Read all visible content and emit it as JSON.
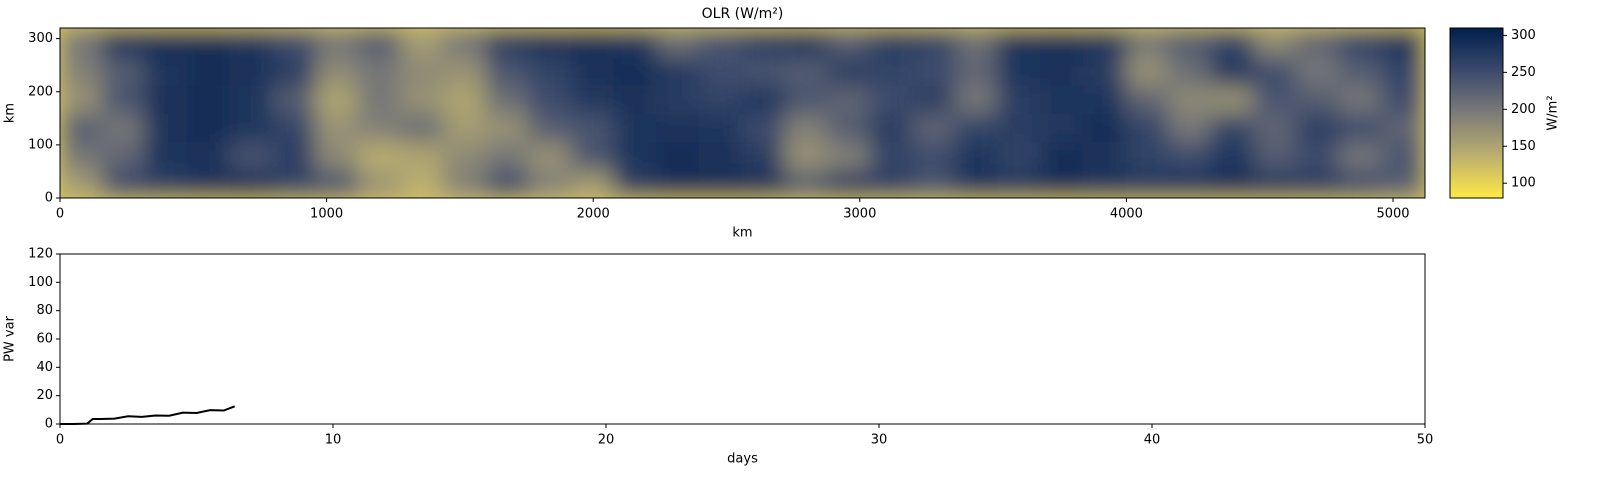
{
  "chart_data": [
    {
      "type": "heatmap",
      "title": "OLR (W/m²)",
      "xlabel": "km",
      "ylabel": "km",
      "xlim": [
        0,
        5120
      ],
      "xticks": [
        0,
        1000,
        2000,
        3000,
        4000,
        5000
      ],
      "ylim": [
        0,
        320
      ],
      "yticks": [
        0,
        100,
        200,
        300
      ],
      "colormap": "cividis_r",
      "colorbar": {
        "label": "W/m²",
        "lim": [
          80,
          310
        ],
        "ticks": [
          100,
          150,
          200,
          250,
          300
        ]
      },
      "values": [
        [
          160,
          250,
          270,
          285,
          290,
          260,
          240,
          170,
          140,
          190,
          250,
          190,
          160,
          270,
          290,
          290,
          285,
          230,
          270,
          265,
          240,
          280,
          275,
          290,
          280,
          275,
          280,
          285,
          275,
          270,
          250,
          230
        ],
        [
          200,
          220,
          280,
          285,
          240,
          270,
          180,
          140,
          150,
          180,
          200,
          170,
          240,
          280,
          290,
          285,
          270,
          170,
          190,
          260,
          250,
          280,
          260,
          290,
          285,
          260,
          250,
          280,
          230,
          250,
          200,
          240
        ],
        [
          230,
          200,
          285,
          290,
          280,
          260,
          170,
          190,
          210,
          160,
          170,
          230,
          240,
          280,
          285,
          280,
          250,
          190,
          230,
          270,
          220,
          260,
          270,
          275,
          290,
          260,
          200,
          260,
          220,
          270,
          250,
          220
        ],
        [
          170,
          240,
          285,
          290,
          280,
          230,
          150,
          200,
          170,
          150,
          210,
          250,
          275,
          285,
          270,
          260,
          280,
          240,
          220,
          250,
          270,
          200,
          270,
          280,
          280,
          220,
          180,
          170,
          240,
          230,
          200,
          250
        ],
        [
          190,
          230,
          280,
          290,
          285,
          270,
          180,
          200,
          180,
          170,
          240,
          260,
          285,
          290,
          275,
          250,
          240,
          230,
          270,
          260,
          250,
          220,
          280,
          285,
          270,
          170,
          210,
          280,
          250,
          200,
          230,
          260
        ],
        [
          200,
          280,
          290,
          290,
          280,
          250,
          200,
          230,
          160,
          200,
          270,
          285,
          290,
          280,
          210,
          240,
          270,
          280,
          230,
          270,
          260,
          210,
          285,
          290,
          280,
          200,
          230,
          260,
          180,
          220,
          260,
          280
        ]
      ]
    },
    {
      "type": "line",
      "xlabel": "days",
      "ylabel": "PW var",
      "xlim": [
        0,
        50
      ],
      "xticks": [
        0,
        10,
        20,
        30,
        40,
        50
      ],
      "ylim": [
        0,
        120
      ],
      "yticks": [
        0,
        20,
        40,
        60,
        80,
        100,
        120
      ],
      "color": "#000000",
      "x": [
        0,
        0.5,
        1,
        1.2,
        1.5,
        2,
        2.5,
        3,
        3.5,
        4,
        4.5,
        5,
        5.5,
        6,
        6.4
      ],
      "values": [
        0,
        0,
        0.3,
        3.5,
        3.5,
        3.8,
        5.5,
        5,
        6,
        5.8,
        8,
        7.8,
        9.8,
        9.5,
        12.5
      ]
    }
  ]
}
